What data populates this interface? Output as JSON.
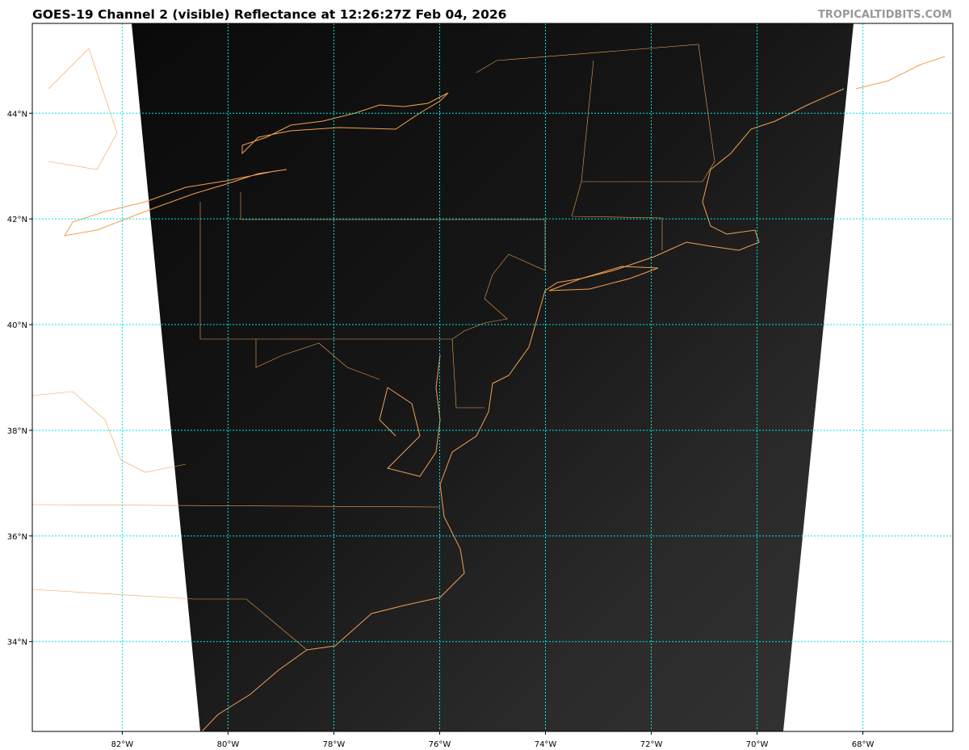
{
  "header": {
    "title": "GOES-19 Channel 2 (visible) Reflectance at 12:26:27Z Feb 04, 2026",
    "credit": "TROPICALTIDBITS.COM"
  },
  "map": {
    "extent": {
      "lon_min": -83.7,
      "lon_max": -66.3,
      "lat_min": 32.3,
      "lat_max": 45.7
    },
    "lon_ticks": [
      -82,
      -80,
      -78,
      -76,
      -74,
      -72,
      -70,
      -68
    ],
    "lon_labels": [
      "82°W",
      "80°W",
      "78°W",
      "76°W",
      "74°W",
      "72°W",
      "70°W",
      "68°W"
    ],
    "lat_ticks": [
      44,
      42,
      40,
      38,
      36,
      34
    ],
    "lat_labels": [
      "44°N",
      "42°N",
      "40°N",
      "38°N",
      "36°N",
      "34°N"
    ],
    "colors": {
      "coastline": "#f0a050",
      "grid": "#00e5e5",
      "imagery_dark": "#0d0d0d",
      "imagery_light": "#3a3a3a"
    },
    "grid": true
  }
}
